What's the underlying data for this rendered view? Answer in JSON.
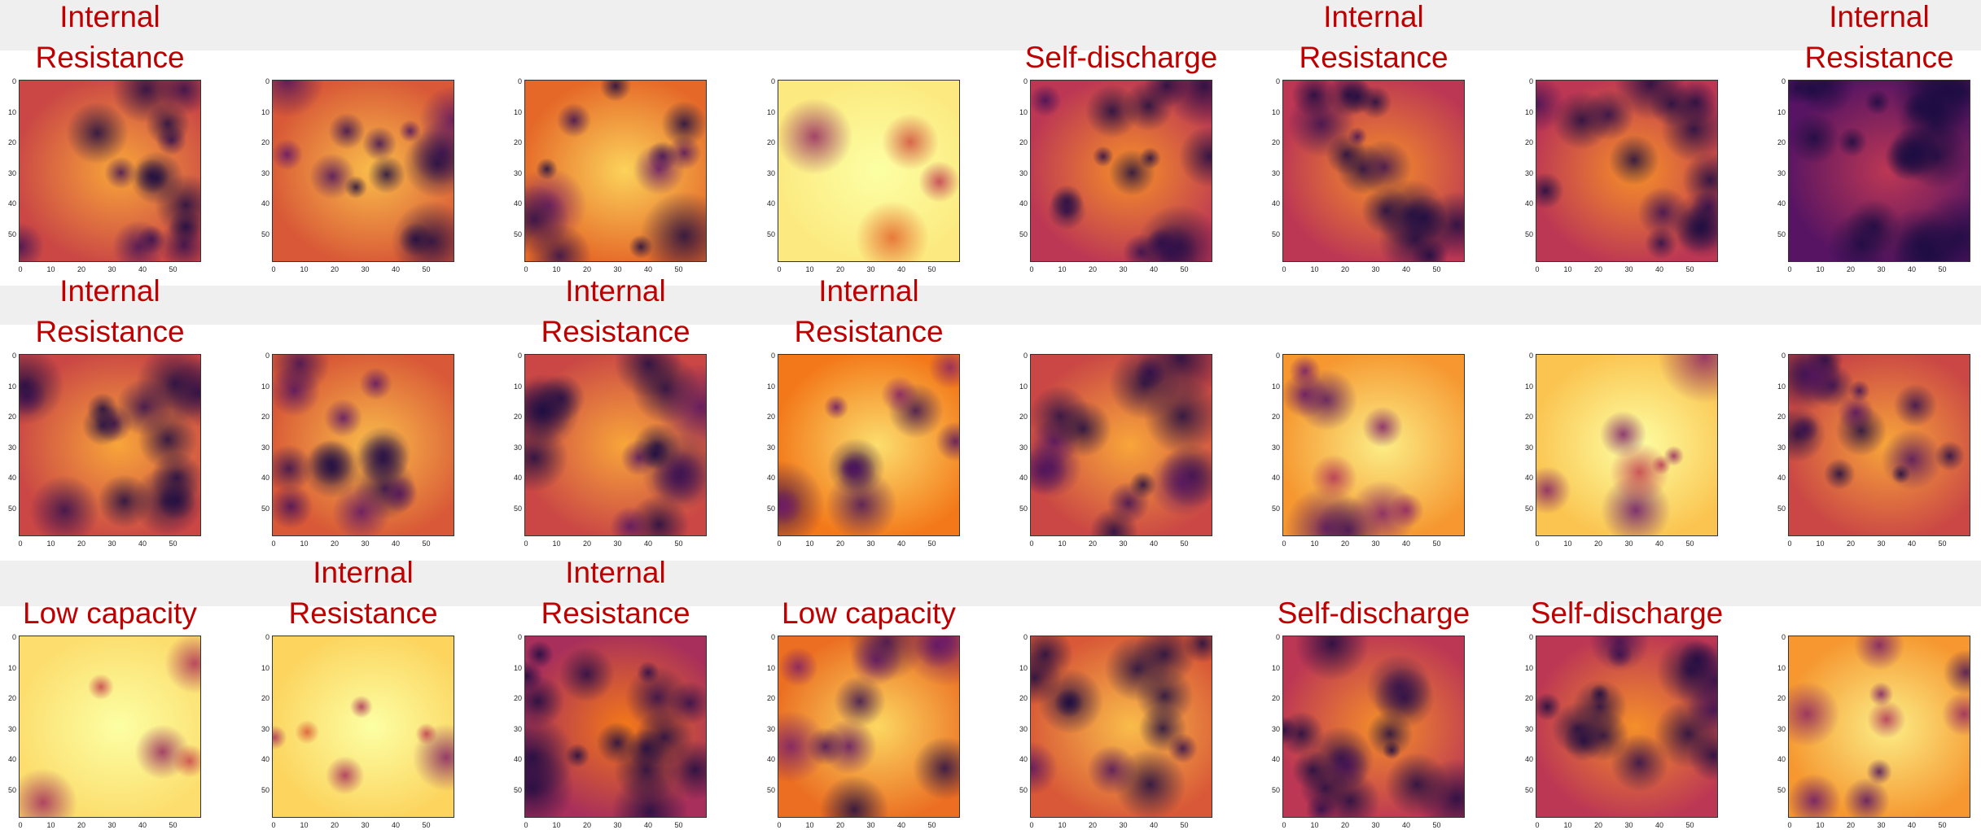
{
  "ticks": [
    "0",
    "10",
    "20",
    "30",
    "40",
    "50"
  ],
  "rows": [
    [
      {
        "label": "Internal Resistance"
      },
      {
        "label": null
      },
      {
        "label": null
      },
      {
        "label": null
      },
      {
        "label": "Self-discharge"
      },
      {
        "label": "Internal Resistance"
      },
      {
        "label": null
      },
      {
        "label": "Internal Resistance"
      }
    ],
    [
      {
        "label": "Internal Resistance"
      },
      {
        "label": null
      },
      {
        "label": "Internal Resistance"
      },
      {
        "label": "Internal Resistance"
      },
      {
        "label": null
      },
      {
        "label": null
      },
      {
        "label": null
      },
      {
        "label": null
      }
    ],
    [
      {
        "label": "Low capacity"
      },
      {
        "label": "Internal Resistance"
      },
      {
        "label": "Internal Resistance"
      },
      {
        "label": "Low capacity"
      },
      {
        "label": null
      },
      {
        "label": "Self-discharge"
      },
      {
        "label": "Self-discharge"
      },
      {
        "label": null
      }
    ]
  ]
}
